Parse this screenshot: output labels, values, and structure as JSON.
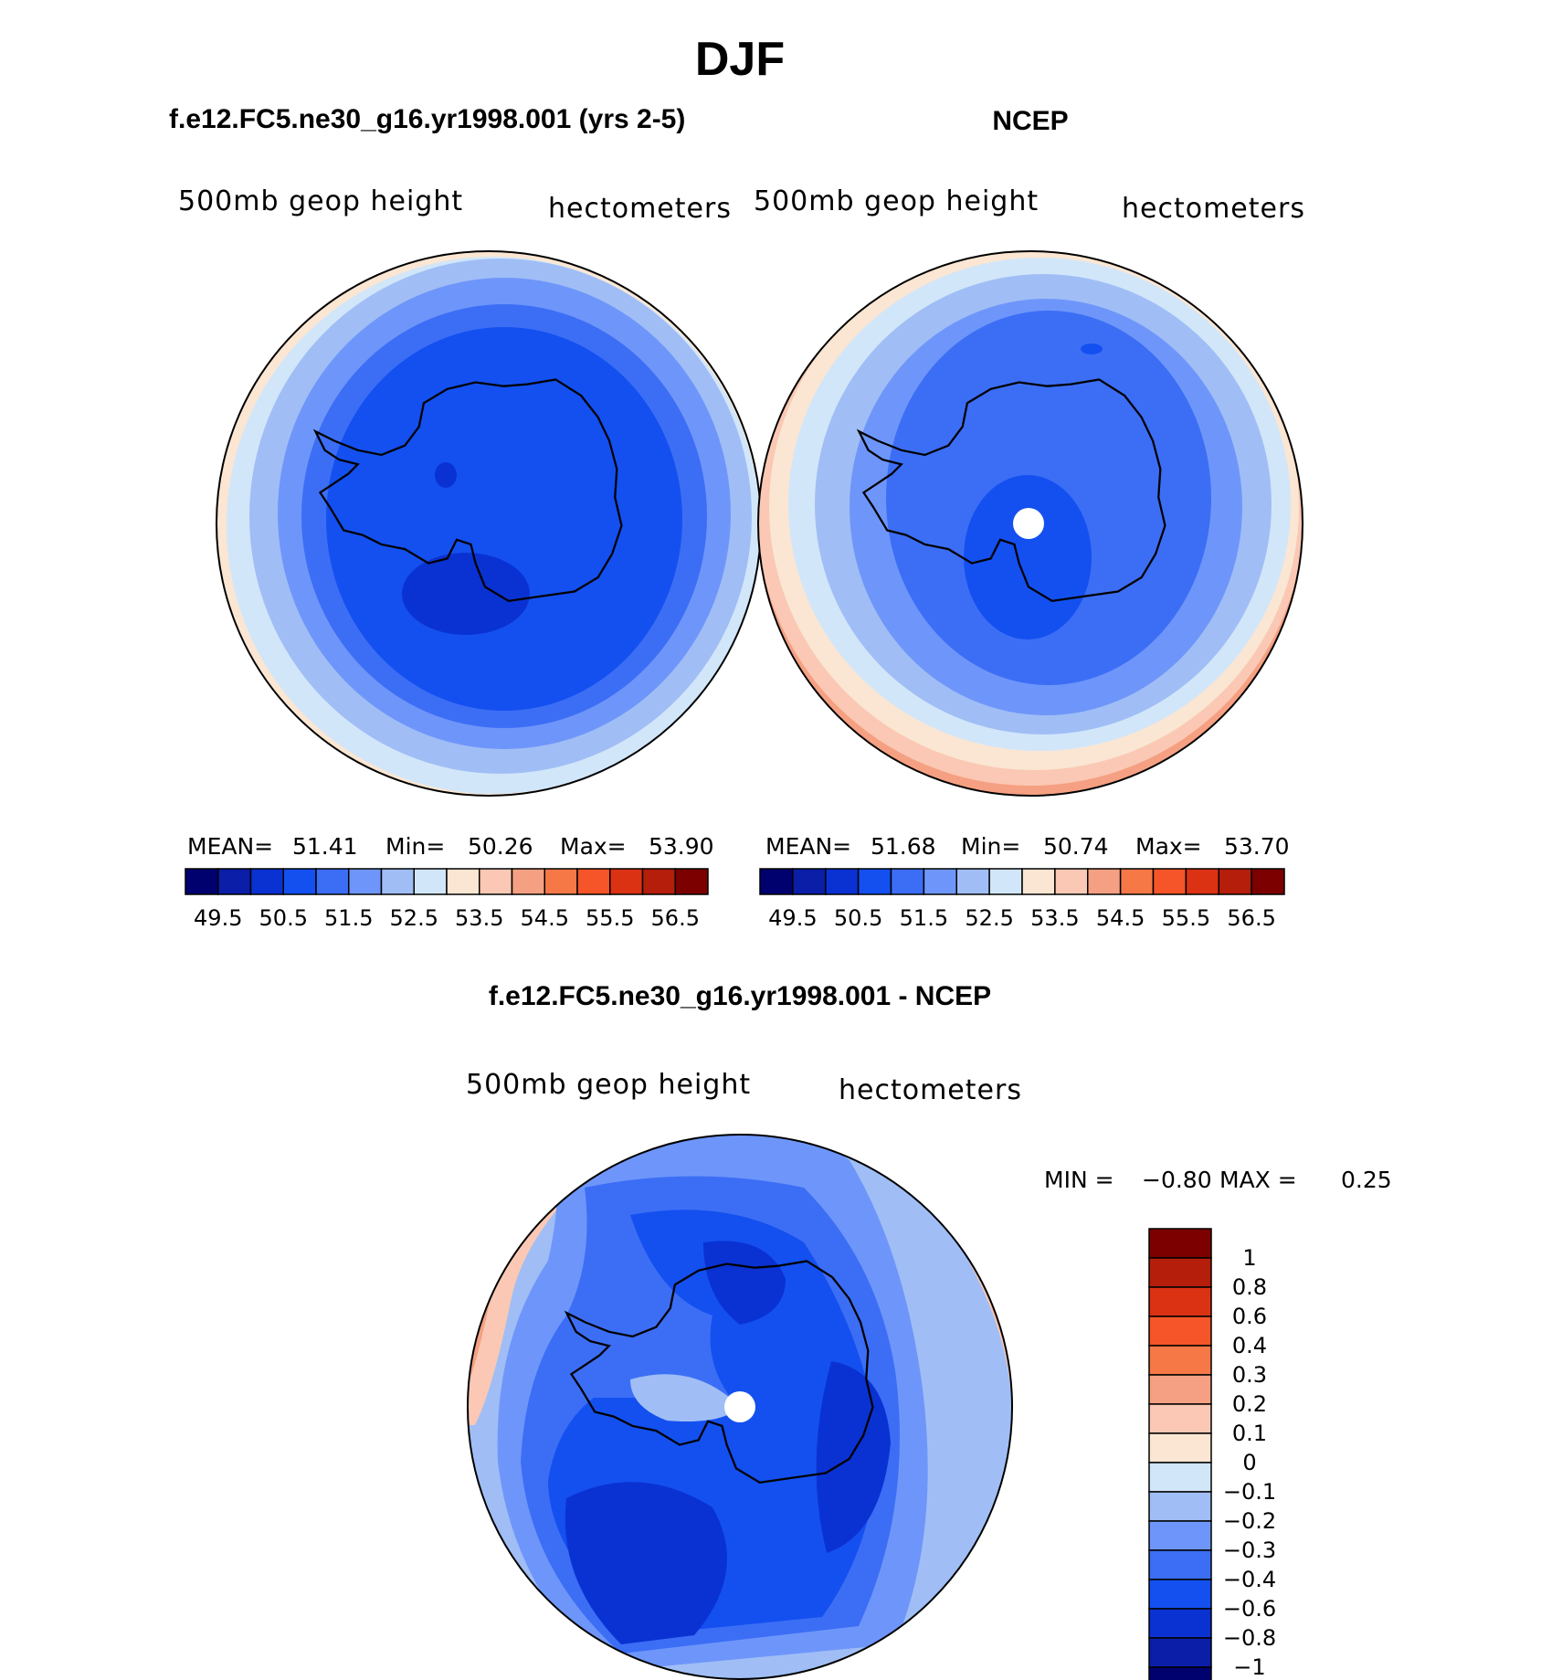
{
  "figure": {
    "title": "DJF",
    "left_header": "f.e12.FC5.ne30_g16.yr1998.001 (yrs 2-5)",
    "right_header": "NCEP",
    "diff_header": "f.e12.FC5.ne30_g16.yr1998.001 - NCEP"
  },
  "panels": {
    "model": {
      "var_label": "500mb geop height",
      "units": "hectometers",
      "mean_label": "MEAN=",
      "mean": "51.41",
      "min_label": "Min=",
      "min": "50.26",
      "max_label": "Max=",
      "max": "53.90"
    },
    "ncep": {
      "var_label": "500mb geop height",
      "units": "hectometers",
      "mean_label": "MEAN=",
      "mean": "51.68",
      "min_label": "Min=",
      "min": "50.74",
      "max_label": "Max=",
      "max": "53.70"
    },
    "diff": {
      "var_label": "500mb geop height",
      "units": "hectometers",
      "min_label": "MIN =",
      "min": "−0.80",
      "max_label": "MAX =",
      "max": "0.25"
    }
  },
  "colorbar_fields": {
    "colors": [
      "#00006e",
      "#0a1ea8",
      "#0a32d2",
      "#1450f0",
      "#3c6ef5",
      "#6e96fa",
      "#a0bef5",
      "#d2e6fa",
      "#fae6d2",
      "#fac8b4",
      "#f5a082",
      "#f57846",
      "#f55528",
      "#dc3214",
      "#b41e0a",
      "#7d0000"
    ],
    "tick_labels": [
      "49.5",
      "50.5",
      "51.5",
      "52.5",
      "53.5",
      "54.5",
      "55.5",
      "56.5"
    ]
  },
  "colorbar_diff": {
    "colors_top_to_bottom": [
      "#7d0000",
      "#b41e0a",
      "#dc3214",
      "#f55528",
      "#f57846",
      "#f5a082",
      "#fac8b4",
      "#fae6d2",
      "#d2e6fa",
      "#a0bef5",
      "#6e96fa",
      "#3c6ef5",
      "#1450f0",
      "#0a32d2",
      "#0a1ea8",
      "#00006e"
    ],
    "tick_labels": [
      "1",
      "0.8",
      "0.6",
      "0.4",
      "0.3",
      "0.2",
      "0.1",
      "0",
      "−0.1",
      "−0.2",
      "−0.3",
      "−0.4",
      "−0.6",
      "−0.8",
      "−1"
    ]
  }
}
